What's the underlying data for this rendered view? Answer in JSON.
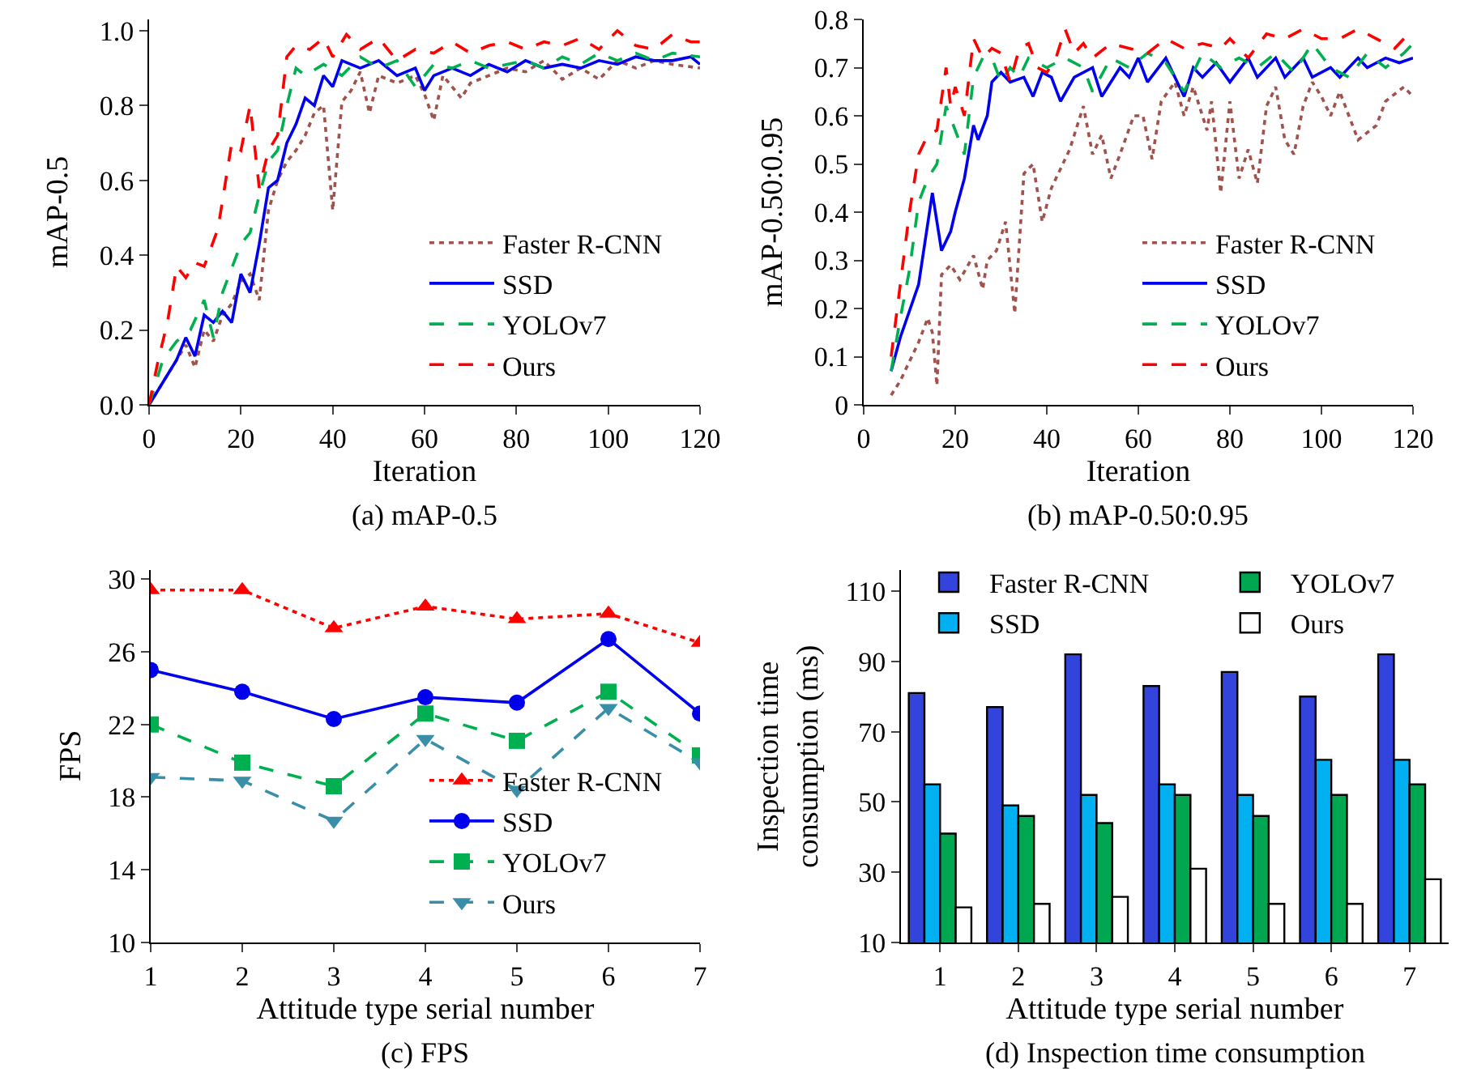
{
  "chart_data": [
    {
      "type": "line",
      "xlabel": "Iteration",
      "ylabel": "mAP-0.5",
      "annotations": [
        "(a) mAP-0.5"
      ],
      "xlim": [
        0,
        120
      ],
      "xticks": [
        0,
        20,
        40,
        60,
        80,
        100,
        120
      ],
      "ylim": [
        0,
        1.03
      ],
      "yticks": [
        {
          "value": 0,
          "label": "0.0"
        },
        {
          "value": 0.2,
          "label": "0.2"
        },
        {
          "value": 0.4,
          "label": "0.4"
        },
        {
          "value": 0.6,
          "label": "0.6"
        },
        {
          "value": 0.8,
          "label": "0.8"
        },
        {
          "value": 1,
          "label": "1.0"
        }
      ],
      "grid": false,
      "legend": "bottom right",
      "marker": "none",
      "series": [
        {
          "name": "Faster R-CNN",
          "color": "#a0524d",
          "line_style": "dotted",
          "x": [
            0,
            4,
            6,
            8,
            10,
            12,
            14,
            16,
            18,
            20,
            22,
            24,
            26,
            28,
            30,
            32,
            34,
            36,
            38,
            40,
            42,
            44,
            46,
            48,
            50,
            54,
            58,
            60,
            62,
            64,
            68,
            70,
            74,
            78,
            82,
            86,
            90,
            94,
            98,
            102,
            106,
            110,
            114,
            120
          ],
          "values": [
            0,
            0.08,
            0.12,
            0.16,
            0.1,
            0.2,
            0.17,
            0.24,
            0.27,
            0.33,
            0.35,
            0.28,
            0.52,
            0.6,
            0.65,
            0.68,
            0.72,
            0.78,
            0.8,
            0.52,
            0.81,
            0.84,
            0.89,
            0.78,
            0.88,
            0.86,
            0.88,
            0.83,
            0.76,
            0.88,
            0.82,
            0.86,
            0.88,
            0.9,
            0.89,
            0.92,
            0.87,
            0.9,
            0.87,
            0.92,
            0.9,
            0.92,
            0.91,
            0.9
          ]
        },
        {
          "name": "SSD",
          "color": "#0000ee",
          "line_style": "solid",
          "x": [
            0,
            4,
            6,
            8,
            10,
            12,
            14,
            16,
            18,
            20,
            22,
            24,
            26,
            28,
            30,
            32,
            34,
            36,
            38,
            40,
            42,
            46,
            50,
            54,
            58,
            60,
            62,
            66,
            70,
            74,
            78,
            82,
            86,
            90,
            94,
            98,
            102,
            106,
            110,
            114,
            118,
            120
          ],
          "values": [
            0,
            0.08,
            0.12,
            0.18,
            0.13,
            0.24,
            0.22,
            0.25,
            0.22,
            0.35,
            0.3,
            0.43,
            0.58,
            0.6,
            0.7,
            0.75,
            0.82,
            0.8,
            0.88,
            0.85,
            0.92,
            0.9,
            0.92,
            0.88,
            0.9,
            0.84,
            0.88,
            0.9,
            0.88,
            0.91,
            0.89,
            0.92,
            0.9,
            0.91,
            0.9,
            0.92,
            0.91,
            0.93,
            0.92,
            0.92,
            0.93,
            0.91
          ]
        },
        {
          "name": "YOLOv7",
          "color": "#00b050",
          "line_style": "dashed",
          "x": [
            0,
            3,
            6,
            9,
            12,
            14,
            16,
            20,
            22,
            24,
            26,
            28,
            30,
            32,
            34,
            38,
            42,
            46,
            50,
            54,
            58,
            62,
            66,
            70,
            74,
            78,
            82,
            86,
            90,
            94,
            98,
            102,
            106,
            110,
            114,
            120
          ],
          "values": [
            0,
            0.12,
            0.17,
            0.2,
            0.28,
            0.18,
            0.3,
            0.43,
            0.46,
            0.56,
            0.65,
            0.68,
            0.8,
            0.9,
            0.88,
            0.91,
            0.88,
            0.93,
            0.9,
            0.92,
            0.85,
            0.91,
            0.9,
            0.92,
            0.9,
            0.91,
            0.92,
            0.9,
            0.93,
            0.91,
            0.94,
            0.92,
            0.94,
            0.92,
            0.94,
            0.93
          ]
        },
        {
          "name": "Ours",
          "color": "#ff0000",
          "line_style": "dashed",
          "x": [
            0,
            2,
            4,
            6,
            8,
            10,
            12,
            15,
            18,
            20,
            22,
            24,
            26,
            28,
            30,
            32,
            35,
            38,
            40,
            43,
            46,
            50,
            54,
            58,
            62,
            66,
            70,
            74,
            78,
            82,
            86,
            90,
            94,
            98,
            102,
            106,
            110,
            114,
            118,
            120
          ],
          "values": [
            0,
            0.12,
            0.22,
            0.37,
            0.34,
            0.38,
            0.37,
            0.47,
            0.7,
            0.68,
            0.8,
            0.58,
            0.68,
            0.72,
            0.93,
            0.96,
            0.95,
            0.98,
            0.93,
            0.99,
            0.95,
            0.98,
            0.92,
            0.95,
            0.94,
            0.97,
            0.94,
            0.96,
            0.97,
            0.95,
            0.97,
            0.96,
            0.98,
            0.95,
            1.0,
            0.96,
            0.95,
            0.99,
            0.97,
            0.97
          ]
        }
      ]
    },
    {
      "type": "line",
      "xlabel": "Iteration",
      "ylabel": "mAP-0.50:0.95",
      "annotations": [
        "(b) mAP-0.50:0.95"
      ],
      "xlim": [
        0,
        120
      ],
      "xticks": [
        0,
        20,
        40,
        60,
        80,
        100,
        120
      ],
      "ylim": [
        0,
        0.8
      ],
      "yticks": [
        0,
        0.1,
        0.2,
        0.3,
        0.4,
        0.5,
        0.6,
        0.7,
        0.8
      ],
      "grid": false,
      "legend": "bottom right",
      "marker": "none",
      "series": [
        {
          "name": "Faster R-CNN",
          "color": "#a0524d",
          "line_style": "dotted",
          "x": [
            6,
            8,
            10,
            12,
            14,
            15,
            16,
            17,
            19,
            21,
            24,
            26,
            27,
            29,
            31,
            33,
            35,
            37,
            39,
            41,
            45,
            48,
            50,
            52,
            54,
            56,
            59,
            61,
            63,
            65,
            68,
            70,
            72,
            75,
            76,
            78,
            80,
            82,
            84,
            86,
            88,
            90,
            92,
            94,
            96,
            98,
            100,
            102,
            104,
            106,
            108,
            112,
            114,
            118,
            120
          ],
          "values": [
            0.02,
            0.05,
            0.09,
            0.13,
            0.18,
            0.15,
            0.04,
            0.27,
            0.29,
            0.26,
            0.31,
            0.24,
            0.3,
            0.32,
            0.38,
            0.19,
            0.48,
            0.5,
            0.38,
            0.45,
            0.53,
            0.62,
            0.52,
            0.56,
            0.47,
            0.52,
            0.6,
            0.6,
            0.51,
            0.63,
            0.67,
            0.6,
            0.66,
            0.57,
            0.63,
            0.44,
            0.63,
            0.47,
            0.53,
            0.46,
            0.62,
            0.66,
            0.55,
            0.52,
            0.62,
            0.67,
            0.64,
            0.6,
            0.65,
            0.6,
            0.55,
            0.58,
            0.63,
            0.66,
            0.64
          ]
        },
        {
          "name": "SSD",
          "color": "#0000ee",
          "line_style": "solid",
          "x": [
            6,
            8,
            12,
            15,
            17,
            19,
            20,
            22,
            24,
            25,
            27,
            28,
            30,
            32,
            35,
            37,
            39,
            41,
            43,
            46,
            50,
            52,
            56,
            58,
            60,
            62,
            66,
            68,
            70,
            72,
            74,
            77,
            80,
            84,
            86,
            90,
            92,
            96,
            98,
            102,
            104,
            108,
            110,
            114,
            117,
            120
          ],
          "values": [
            0.07,
            0.14,
            0.25,
            0.44,
            0.32,
            0.36,
            0.4,
            0.47,
            0.58,
            0.55,
            0.6,
            0.67,
            0.69,
            0.67,
            0.68,
            0.64,
            0.69,
            0.68,
            0.63,
            0.68,
            0.7,
            0.64,
            0.7,
            0.68,
            0.72,
            0.67,
            0.72,
            0.68,
            0.64,
            0.7,
            0.68,
            0.71,
            0.67,
            0.72,
            0.68,
            0.72,
            0.68,
            0.72,
            0.68,
            0.7,
            0.68,
            0.72,
            0.7,
            0.72,
            0.71,
            0.72
          ]
        },
        {
          "name": "YOLOv7",
          "color": "#00b050",
          "line_style": "dashed",
          "x": [
            6,
            8,
            10,
            12,
            14,
            16,
            18,
            20,
            22,
            24,
            26,
            28,
            30,
            32,
            34,
            36,
            40,
            44,
            48,
            50,
            54,
            58,
            62,
            66,
            70,
            74,
            78,
            82,
            86,
            90,
            94,
            98,
            102,
            106,
            110,
            114,
            118,
            120
          ],
          "values": [
            0.07,
            0.18,
            0.28,
            0.42,
            0.47,
            0.5,
            0.62,
            0.57,
            0.52,
            0.68,
            0.72,
            0.72,
            0.67,
            0.7,
            0.68,
            0.72,
            0.7,
            0.72,
            0.7,
            0.65,
            0.72,
            0.7,
            0.73,
            0.71,
            0.65,
            0.73,
            0.7,
            0.72,
            0.7,
            0.73,
            0.69,
            0.75,
            0.7,
            0.68,
            0.73,
            0.7,
            0.73,
            0.75
          ]
        },
        {
          "name": "Ours",
          "color": "#ff0000",
          "line_style": "dashed",
          "x": [
            6,
            8,
            10,
            12,
            14,
            16,
            18,
            19,
            20,
            22,
            24,
            26,
            28,
            30,
            32,
            34,
            36,
            38,
            40,
            42,
            44,
            46,
            48,
            50,
            54,
            58,
            62,
            66,
            70,
            74,
            78,
            80,
            84,
            88,
            92,
            96,
            100,
            104,
            108,
            112,
            116,
            120
          ],
          "values": [
            0.1,
            0.25,
            0.4,
            0.52,
            0.56,
            0.57,
            0.7,
            0.62,
            0.66,
            0.6,
            0.76,
            0.72,
            0.74,
            0.73,
            0.67,
            0.74,
            0.75,
            0.7,
            0.69,
            0.72,
            0.78,
            0.73,
            0.75,
            0.72,
            0.75,
            0.74,
            0.73,
            0.76,
            0.74,
            0.75,
            0.74,
            0.76,
            0.72,
            0.77,
            0.76,
            0.78,
            0.76,
            0.76,
            0.78,
            0.76,
            0.74,
            0.78
          ]
        }
      ]
    },
    {
      "type": "line",
      "xlabel": "Attitude type serial number",
      "ylabel": "FPS",
      "annotations": [
        "(c) FPS"
      ],
      "categories": [
        "1",
        "2",
        "3",
        "4",
        "5",
        "6",
        "7"
      ],
      "ylim": [
        10,
        30.5
      ],
      "yticks": [
        10,
        14,
        18,
        22,
        26,
        30
      ],
      "grid": false,
      "legend": "bottom right",
      "series": [
        {
          "name": "Faster R-CNN",
          "color": "#ff0000",
          "line_style": "dotted",
          "marker": "triangle",
          "values": [
            29.4,
            29.4,
            27.3,
            28.5,
            27.8,
            28.1,
            26.5
          ]
        },
        {
          "name": "SSD",
          "color": "#0000ee",
          "line_style": "solid",
          "marker": "circle",
          "values": [
            25,
            23.8,
            22.3,
            23.5,
            23.2,
            26.7,
            22.6
          ]
        },
        {
          "name": "YOLOv7",
          "color": "#00b050",
          "line_style": "dashed",
          "marker": "square",
          "values": [
            22,
            19.9,
            18.6,
            22.6,
            21.1,
            23.8,
            20.3
          ]
        },
        {
          "name": "Ours",
          "color": "#3a8fa8",
          "line_style": "dashed",
          "marker": "triangle-down",
          "values": [
            19.1,
            18.9,
            16.7,
            21.2,
            18.4,
            22.9,
            19.9
          ]
        }
      ]
    },
    {
      "type": "bar",
      "xlabel": "Attitude type serial number",
      "ylabel": "Inspection time consumption (ms)",
      "annotations": [
        "(d) Inspection time consumption"
      ],
      "categories": [
        "1",
        "2",
        "3",
        "4",
        "5",
        "6",
        "7"
      ],
      "ylim": [
        10,
        116
      ],
      "yticks": [
        10,
        30,
        50,
        70,
        90,
        110
      ],
      "grid": false,
      "legend": "top",
      "series": [
        {
          "name": "Faster R-CNN",
          "color": "#3344dd",
          "values": [
            81,
            77,
            92,
            83,
            87,
            80,
            92
          ]
        },
        {
          "name": "SSD",
          "color": "#00b0f0",
          "values": [
            55,
            49,
            52,
            55,
            52,
            62,
            62
          ]
        },
        {
          "name": "YOLOv7",
          "color": "#00a650",
          "values": [
            41,
            46,
            44,
            52,
            46,
            52,
            55
          ]
        },
        {
          "name": "Ours",
          "color": "#ffffff",
          "values": [
            20,
            21,
            23,
            31,
            21,
            21,
            28
          ]
        }
      ]
    }
  ]
}
